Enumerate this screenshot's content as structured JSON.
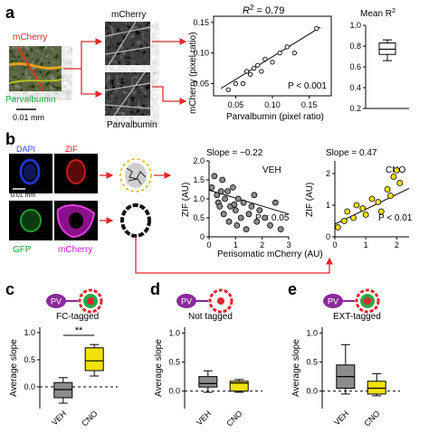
{
  "panels": {
    "a": {
      "letter": "a",
      "mcherry_label": "mCherry",
      "pv_label": "Parvalbumin",
      "scale_bar": "0.01 mm",
      "split_top_label": "mCherry",
      "split_bottom_label": "Parvalbumin",
      "scatter": {
        "r2_prefix": "R",
        "r2_sup": "2",
        "r2_value": " = 0.79",
        "p_text": "P < 0.001",
        "xlabel": "Parvalbumin (pixel ratio)",
        "ylabel": "mCherry (pixel ratio)",
        "xticks": [
          "0.05",
          "0.10",
          "0.15"
        ],
        "yticks": [
          "0.05",
          "0.10",
          "0.15"
        ]
      },
      "box": {
        "title_prefix": "Mean R",
        "title_sup": "2",
        "yticks": [
          "0.2",
          "0.4",
          "0.6",
          "0.8",
          "1.0"
        ]
      }
    },
    "b": {
      "letter": "b",
      "labels": {
        "dapi": "DAPI",
        "zif": "ZIF",
        "gfp": "GFP",
        "mcherry": "mCherry",
        "scale": "0.01 mm"
      },
      "veh": {
        "slope": "Slope = −0.22",
        "tag": "VEH",
        "p_text": "P < 0.05",
        "ylabel": "ZIF (AU)",
        "xticks": [
          "0",
          "1",
          "2",
          "3"
        ],
        "yticks": [
          "0",
          "0.5",
          "1.0",
          "1.5",
          "2.0"
        ]
      },
      "cno": {
        "slope": "Slope = 0.47",
        "tag": "CNO",
        "p_text": "P < 0.01",
        "ylabel": "ZIF (AU)",
        "xticks": [
          "0",
          "1",
          "2"
        ],
        "yticks": [
          "0",
          "1",
          "2"
        ]
      },
      "xlabel": "Perisomatic mCherry (AU)"
    },
    "c": {
      "letter": "c",
      "title": "FC-tagged",
      "sig": "**"
    },
    "d": {
      "letter": "d",
      "title": "Not tagged"
    },
    "e": {
      "letter": "e",
      "title": "EXT-tagged"
    },
    "pv_icon": "PV",
    "common": {
      "ylabel": "Average slope",
      "xticks": [
        "VEH",
        "CNO"
      ],
      "yticks": [
        "0.0",
        "0.5",
        "1.0"
      ]
    }
  },
  "colors": {
    "red": "#e0262c",
    "green": "#2aa64a",
    "pv_purple": "#8a2a9c",
    "yellow": "#f4e20c",
    "gray": "#8c8c8c",
    "dapi_blue": "#2233cc",
    "zif_red": "#cc1a1a",
    "gfp_green": "#1f9e2c",
    "mcherry_magenta": "#c81ec8"
  },
  "chart_data": [
    {
      "type": "scatter",
      "panel": "a",
      "x": [
        0.04,
        0.05,
        0.06,
        0.065,
        0.07,
        0.075,
        0.08,
        0.085,
        0.09,
        0.1,
        0.11,
        0.12,
        0.13,
        0.16
      ],
      "y": [
        0.04,
        0.05,
        0.05,
        0.07,
        0.065,
        0.075,
        0.08,
        0.07,
        0.09,
        0.085,
        0.1,
        0.11,
        0.1,
        0.14
      ],
      "xlabel": "Parvalbumin (pixel ratio)",
      "ylabel": "mCherry (pixel ratio)",
      "xlim": [
        0.02,
        0.18
      ],
      "ylim": [
        0.03,
        0.16
      ]
    },
    {
      "type": "box",
      "panel": "a",
      "min": 0.66,
      "q1": 0.72,
      "median": 0.77,
      "q3": 0.83,
      "max": 0.86,
      "ylim": [
        0.2,
        1.0
      ]
    },
    {
      "type": "scatter",
      "panel": "b",
      "series": [
        {
          "name": "VEH",
          "color": "#8c8c8c",
          "x": [
            0.1,
            0.2,
            0.3,
            0.35,
            0.4,
            0.5,
            0.55,
            0.6,
            0.7,
            0.75,
            0.8,
            0.9,
            1.0,
            1.05,
            1.1,
            1.2,
            1.3,
            1.4,
            1.5,
            1.6,
            1.7,
            1.8,
            1.9,
            2.1,
            2.3,
            2.5,
            2.7,
            0.45,
            0.95
          ],
          "y": [
            1.3,
            1.6,
            1.1,
            0.9,
            0.8,
            1.5,
            0.6,
            1.0,
            1.2,
            0.4,
            0.8,
            1.3,
            0.7,
            0.3,
            1.0,
            0.5,
            0.9,
            0.2,
            0.6,
            0.8,
            1.1,
            0.4,
            0.7,
            0.5,
            0.3,
            0.9,
            0.2,
            1.2,
            0.85
          ]
        }
      ],
      "fit": {
        "x": [
          0,
          3
        ],
        "y": [
          1.23,
          0.6
        ]
      },
      "xlabel": "Perisomatic mCherry (AU)",
      "ylabel": "ZIF (AU)",
      "xlim": [
        0,
        3
      ],
      "ylim": [
        0,
        2.0
      ]
    },
    {
      "type": "scatter",
      "panel": "b",
      "series": [
        {
          "name": "CNO",
          "color": "#f4e20c",
          "x": [
            0.1,
            0.3,
            0.4,
            0.6,
            0.7,
            0.9,
            1.0,
            1.2,
            1.4,
            1.5,
            1.7,
            1.8,
            1.9,
            2.0,
            2.1
          ],
          "y": [
            0.3,
            0.5,
            0.8,
            0.6,
            1.0,
            0.9,
            0.7,
            1.2,
            1.1,
            0.8,
            1.5,
            1.3,
            1.9,
            2.1,
            1.7
          ]
        }
      ],
      "fit": {
        "x": [
          0,
          2.4
        ],
        "y": [
          0.4,
          1.53
        ]
      },
      "xlabel": "Perisomatic mCherry (AU)",
      "ylabel": "ZIF (AU)",
      "xlim": [
        0,
        2.4
      ],
      "ylim": [
        0,
        2.4
      ]
    },
    {
      "type": "box",
      "panel": "c",
      "categories": [
        "VEH",
        "CNO"
      ],
      "boxes": [
        {
          "name": "VEH",
          "color": "#8c8c8c",
          "min": -0.3,
          "q1": -0.2,
          "median": -0.05,
          "q3": 0.08,
          "max": 0.17
        },
        {
          "name": "CNO",
          "color": "#f4e20c",
          "min": 0.2,
          "q1": 0.3,
          "median": 0.48,
          "q3": 0.72,
          "max": 0.78
        }
      ],
      "ylim": [
        -0.4,
        1.1
      ]
    },
    {
      "type": "box",
      "panel": "d",
      "categories": [
        "VEH",
        "CNO"
      ],
      "boxes": [
        {
          "name": "VEH",
          "color": "#8c8c8c",
          "min": -0.02,
          "q1": 0.07,
          "median": 0.13,
          "q3": 0.25,
          "max": 0.35
        },
        {
          "name": "CNO",
          "color": "#f4e20c",
          "min": -0.02,
          "q1": 0.0,
          "median": 0.14,
          "q3": 0.17,
          "max": 0.2
        }
      ],
      "ylim": [
        -0.3,
        1.1
      ]
    },
    {
      "type": "box",
      "panel": "e",
      "categories": [
        "VEH",
        "CNO"
      ],
      "boxes": [
        {
          "name": "VEH",
          "color": "#8c8c8c",
          "min": -0.05,
          "q1": 0.05,
          "median": 0.25,
          "q3": 0.45,
          "max": 0.8
        },
        {
          "name": "CNO",
          "color": "#f4e20c",
          "min": -0.08,
          "q1": -0.05,
          "median": 0.05,
          "q3": 0.17,
          "max": 0.3
        }
      ],
      "ylim": [
        -0.3,
        1.1
      ]
    }
  ]
}
